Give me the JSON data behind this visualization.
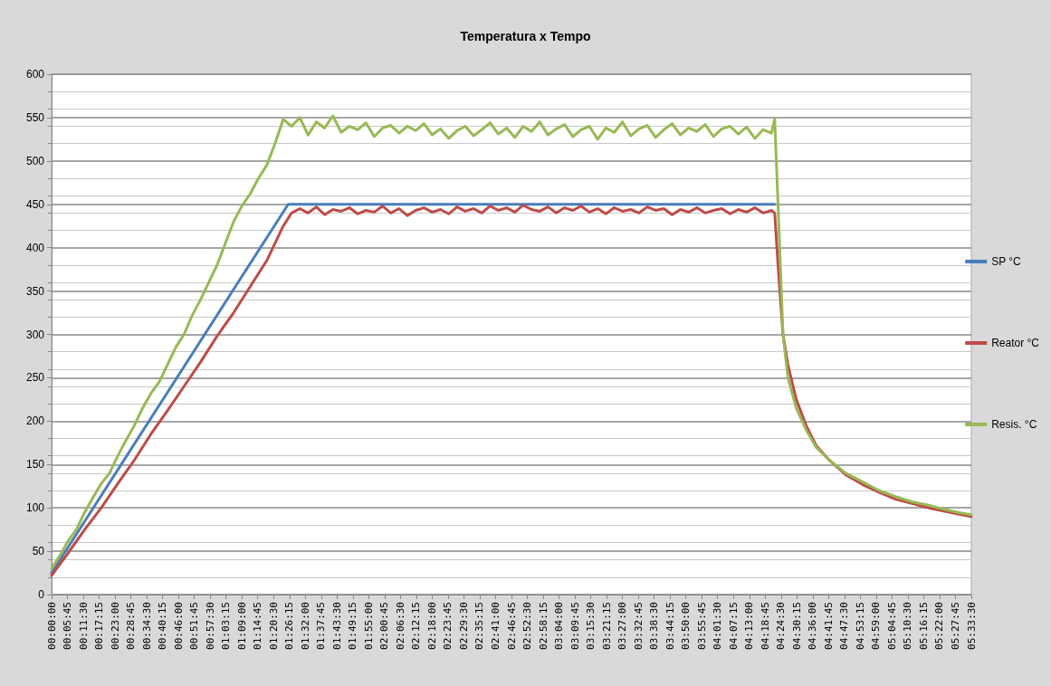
{
  "chart_data": {
    "type": "line",
    "title": "Temperatura x Tempo",
    "xlim": [
      0,
      5.55833
    ],
    "ylim": [
      0,
      600
    ],
    "yticks": [
      0,
      50,
      100,
      150,
      200,
      250,
      300,
      350,
      400,
      450,
      500,
      550,
      600
    ],
    "xticks": [
      {
        "value": 0,
        "label": "00:00:00"
      },
      {
        "value": 0.09583,
        "label": "00:05:45"
      },
      {
        "value": 0.19167,
        "label": "00:11:30"
      },
      {
        "value": 0.2875,
        "label": "00:17:15"
      },
      {
        "value": 0.38333,
        "label": "00:23:00"
      },
      {
        "value": 0.47917,
        "label": "00:28:45"
      },
      {
        "value": 0.575,
        "label": "00:34:30"
      },
      {
        "value": 0.67083,
        "label": "00:40:15"
      },
      {
        "value": 0.76667,
        "label": "00:46:00"
      },
      {
        "value": 0.8625,
        "label": "00:51:45"
      },
      {
        "value": 0.95833,
        "label": "00:57:30"
      },
      {
        "value": 1.05417,
        "label": "01:03:15"
      },
      {
        "value": 1.15,
        "label": "01:09:00"
      },
      {
        "value": 1.24583,
        "label": "01:14:45"
      },
      {
        "value": 1.34167,
        "label": "01:20:30"
      },
      {
        "value": 1.4375,
        "label": "01:26:15"
      },
      {
        "value": 1.53333,
        "label": "01:32:00"
      },
      {
        "value": 1.62917,
        "label": "01:37:45"
      },
      {
        "value": 1.725,
        "label": "01:43:30"
      },
      {
        "value": 1.82083,
        "label": "01:49:15"
      },
      {
        "value": 1.91667,
        "label": "01:55:00"
      },
      {
        "value": 2.0125,
        "label": "02:00:45"
      },
      {
        "value": 2.10833,
        "label": "02:06:30"
      },
      {
        "value": 2.20417,
        "label": "02:12:15"
      },
      {
        "value": 2.3,
        "label": "02:18:00"
      },
      {
        "value": 2.39583,
        "label": "02:23:45"
      },
      {
        "value": 2.49167,
        "label": "02:29:30"
      },
      {
        "value": 2.5875,
        "label": "02:35:15"
      },
      {
        "value": 2.68333,
        "label": "02:41:00"
      },
      {
        "value": 2.77917,
        "label": "02:46:45"
      },
      {
        "value": 2.875,
        "label": "02:52:30"
      },
      {
        "value": 2.97083,
        "label": "02:58:15"
      },
      {
        "value": 3.06667,
        "label": "03:04:00"
      },
      {
        "value": 3.1625,
        "label": "03:09:45"
      },
      {
        "value": 3.25833,
        "label": "03:15:30"
      },
      {
        "value": 3.35417,
        "label": "03:21:15"
      },
      {
        "value": 3.45,
        "label": "03:27:00"
      },
      {
        "value": 3.54583,
        "label": "03:32:45"
      },
      {
        "value": 3.64167,
        "label": "03:38:30"
      },
      {
        "value": 3.7375,
        "label": "03:44:15"
      },
      {
        "value": 3.83333,
        "label": "03:50:00"
      },
      {
        "value": 3.92917,
        "label": "03:55:45"
      },
      {
        "value": 4.025,
        "label": "04:01:30"
      },
      {
        "value": 4.12083,
        "label": "04:07:15"
      },
      {
        "value": 4.21667,
        "label": "04:13:00"
      },
      {
        "value": 4.3125,
        "label": "04:18:45"
      },
      {
        "value": 4.40833,
        "label": "04:24:30"
      },
      {
        "value": 4.50417,
        "label": "04:30:15"
      },
      {
        "value": 4.6,
        "label": "04:36:00"
      },
      {
        "value": 4.69583,
        "label": "04:41:45"
      },
      {
        "value": 4.79167,
        "label": "04:47:30"
      },
      {
        "value": 4.8875,
        "label": "04:53:15"
      },
      {
        "value": 4.98333,
        "label": "04:59:00"
      },
      {
        "value": 5.07917,
        "label": "05:04:45"
      },
      {
        "value": 5.175,
        "label": "05:10:30"
      },
      {
        "value": 5.27083,
        "label": "05:16:15"
      },
      {
        "value": 5.36667,
        "label": "05:22:00"
      },
      {
        "value": 5.4625,
        "label": "05:27:45"
      },
      {
        "value": 5.55833,
        "label": "05:33:30"
      }
    ],
    "grid": "y",
    "legend": "right",
    "marker": "none",
    "line_style": "solid",
    "series": [
      {
        "name": "SP °C",
        "color": "#4a7ebb",
        "x": [
          0,
          1.43,
          4.37
        ],
        "values": [
          25,
          450,
          450
        ]
      },
      {
        "name": "Reator °C",
        "color": "#be4b48",
        "x": [
          0,
          0.1,
          0.2,
          0.3,
          0.4,
          0.5,
          0.6,
          0.7,
          0.8,
          0.9,
          1.0,
          1.1,
          1.2,
          1.3,
          1.4,
          1.45,
          1.5,
          1.55,
          1.6,
          1.65,
          1.7,
          1.75,
          1.8,
          1.85,
          1.9,
          1.95,
          2.0,
          2.05,
          2.1,
          2.15,
          2.2,
          2.25,
          2.3,
          2.35,
          2.4,
          2.45,
          2.5,
          2.55,
          2.6,
          2.65,
          2.7,
          2.75,
          2.8,
          2.85,
          2.9,
          2.95,
          3.0,
          3.05,
          3.1,
          3.15,
          3.2,
          3.25,
          3.3,
          3.35,
          3.4,
          3.45,
          3.5,
          3.55,
          3.6,
          3.65,
          3.7,
          3.75,
          3.8,
          3.85,
          3.9,
          3.95,
          4.0,
          4.05,
          4.1,
          4.15,
          4.2,
          4.25,
          4.3,
          4.35,
          4.37,
          4.39,
          4.42,
          4.45,
          4.5,
          4.56,
          4.62,
          4.7,
          4.8,
          4.9,
          5.0,
          5.1,
          5.2,
          5.3,
          5.4,
          5.5,
          5.558
        ],
        "values": [
          22,
          48,
          75,
          100,
          128,
          155,
          185,
          212,
          240,
          268,
          298,
          325,
          355,
          385,
          425,
          440,
          445,
          440,
          447,
          438,
          444,
          442,
          446,
          439,
          443,
          441,
          448,
          440,
          445,
          437,
          443,
          446,
          441,
          444,
          439,
          447,
          442,
          445,
          440,
          448,
          443,
          446,
          441,
          449,
          444,
          442,
          447,
          440,
          446,
          443,
          448,
          441,
          445,
          439,
          446,
          442,
          444,
          440,
          447,
          443,
          445,
          438,
          444,
          441,
          446,
          440,
          443,
          445,
          439,
          444,
          441,
          446,
          440,
          443,
          440,
          380,
          300,
          265,
          225,
          195,
          172,
          155,
          138,
          127,
          118,
          110,
          105,
          100,
          96,
          92,
          90
        ]
      },
      {
        "name": "Resis. °C",
        "color": "#98b954",
        "x": [
          0,
          0.05,
          0.1,
          0.15,
          0.2,
          0.25,
          0.3,
          0.35,
          0.4,
          0.45,
          0.5,
          0.55,
          0.6,
          0.65,
          0.7,
          0.75,
          0.8,
          0.85,
          0.9,
          0.95,
          1.0,
          1.05,
          1.1,
          1.15,
          1.2,
          1.25,
          1.3,
          1.35,
          1.4,
          1.45,
          1.5,
          1.55,
          1.6,
          1.65,
          1.7,
          1.75,
          1.8,
          1.85,
          1.9,
          1.95,
          2.0,
          2.05,
          2.1,
          2.15,
          2.2,
          2.25,
          2.3,
          2.35,
          2.4,
          2.45,
          2.5,
          2.55,
          2.6,
          2.65,
          2.7,
          2.75,
          2.8,
          2.85,
          2.9,
          2.95,
          3.0,
          3.05,
          3.1,
          3.15,
          3.2,
          3.25,
          3.3,
          3.35,
          3.4,
          3.45,
          3.5,
          3.55,
          3.6,
          3.65,
          3.7,
          3.75,
          3.8,
          3.85,
          3.9,
          3.95,
          4.0,
          4.05,
          4.1,
          4.15,
          4.2,
          4.25,
          4.3,
          4.35,
          4.37,
          4.39,
          4.42,
          4.45,
          4.5,
          4.56,
          4.62,
          4.7,
          4.8,
          4.9,
          5.0,
          5.1,
          5.2,
          5.3,
          5.4,
          5.5,
          5.558
        ],
        "values": [
          30,
          45,
          62,
          75,
          95,
          112,
          128,
          140,
          160,
          178,
          195,
          215,
          232,
          245,
          265,
          285,
          300,
          322,
          340,
          360,
          380,
          405,
          430,
          448,
          462,
          480,
          495,
          520,
          548,
          540,
          550,
          530,
          545,
          538,
          552,
          533,
          540,
          536,
          544,
          528,
          538,
          541,
          532,
          540,
          535,
          543,
          530,
          537,
          526,
          535,
          540,
          529,
          536,
          544,
          531,
          538,
          527,
          540,
          534,
          545,
          530,
          537,
          542,
          528,
          536,
          540,
          525,
          538,
          533,
          545,
          529,
          537,
          541,
          527,
          536,
          543,
          530,
          538,
          534,
          542,
          528,
          537,
          540,
          531,
          539,
          526,
          536,
          532,
          548,
          450,
          300,
          250,
          215,
          190,
          170,
          155,
          140,
          130,
          120,
          113,
          107,
          103,
          98,
          94,
          92
        ]
      }
    ]
  }
}
